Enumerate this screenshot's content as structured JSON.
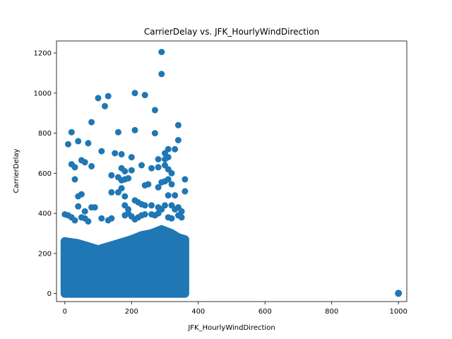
{
  "chart_data": {
    "type": "scatter",
    "title": "CarrierDelay vs. JFK_HourlyWindDirection",
    "xlabel": "JFK_HourlyWindDirection",
    "ylabel": "CarrierDelay",
    "xlim": [
      -25,
      1025
    ],
    "ylim": [
      -40,
      1260
    ],
    "xticks": [
      0,
      200,
      400,
      600,
      800,
      1000
    ],
    "yticks": [
      0,
      200,
      400,
      600,
      800,
      1000,
      1200
    ],
    "grid": false,
    "legend": "none",
    "marker_color": "#1f77b4",
    "series": [
      {
        "points": [
          [
            290,
            1205
          ],
          [
            290,
            1095
          ],
          [
            130,
            985
          ],
          [
            210,
            1000
          ],
          [
            240,
            990
          ],
          [
            100,
            975
          ],
          [
            120,
            935
          ],
          [
            270,
            915
          ],
          [
            80,
            855
          ],
          [
            340,
            840
          ],
          [
            20,
            805
          ],
          [
            160,
            805
          ],
          [
            210,
            815
          ],
          [
            270,
            800
          ],
          [
            10,
            745
          ],
          [
            40,
            760
          ],
          [
            70,
            750
          ],
          [
            340,
            765
          ],
          [
            110,
            710
          ],
          [
            150,
            700
          ],
          [
            170,
            695
          ],
          [
            200,
            680
          ],
          [
            300,
            700
          ],
          [
            310,
            720
          ],
          [
            330,
            720
          ],
          [
            280,
            670
          ],
          [
            300,
            670
          ],
          [
            310,
            680
          ],
          [
            20,
            645
          ],
          [
            30,
            630
          ],
          [
            50,
            665
          ],
          [
            60,
            655
          ],
          [
            80,
            635
          ],
          [
            200,
            615
          ],
          [
            170,
            625
          ],
          [
            180,
            610
          ],
          [
            230,
            640
          ],
          [
            260,
            625
          ],
          [
            280,
            630
          ],
          [
            300,
            640
          ],
          [
            310,
            620
          ],
          [
            320,
            600
          ],
          [
            30,
            570
          ],
          [
            140,
            590
          ],
          [
            160,
            580
          ],
          [
            170,
            565
          ],
          [
            180,
            570
          ],
          [
            190,
            575
          ],
          [
            250,
            545
          ],
          [
            290,
            555
          ],
          [
            300,
            560
          ],
          [
            310,
            570
          ],
          [
            320,
            545
          ],
          [
            360,
            570
          ],
          [
            40,
            485
          ],
          [
            50,
            495
          ],
          [
            140,
            505
          ],
          [
            160,
            505
          ],
          [
            170,
            525
          ],
          [
            180,
            485
          ],
          [
            240,
            540
          ],
          [
            280,
            530
          ],
          [
            310,
            490
          ],
          [
            330,
            490
          ],
          [
            360,
            510
          ],
          [
            40,
            435
          ],
          [
            60,
            410
          ],
          [
            80,
            430
          ],
          [
            90,
            430
          ],
          [
            180,
            440
          ],
          [
            190,
            420
          ],
          [
            210,
            465
          ],
          [
            220,
            455
          ],
          [
            230,
            445
          ],
          [
            240,
            440
          ],
          [
            260,
            440
          ],
          [
            280,
            430
          ],
          [
            290,
            420
          ],
          [
            300,
            440
          ],
          [
            320,
            440
          ],
          [
            330,
            420
          ],
          [
            340,
            430
          ],
          [
            350,
            410
          ],
          [
            0,
            395
          ],
          [
            10,
            390
          ],
          [
            20,
            380
          ],
          [
            30,
            365
          ],
          [
            50,
            380
          ],
          [
            60,
            375
          ],
          [
            70,
            360
          ],
          [
            110,
            375
          ],
          [
            130,
            365
          ],
          [
            140,
            375
          ],
          [
            180,
            390
          ],
          [
            190,
            400
          ],
          [
            200,
            385
          ],
          [
            210,
            370
          ],
          [
            220,
            380
          ],
          [
            230,
            390
          ],
          [
            240,
            395
          ],
          [
            260,
            395
          ],
          [
            270,
            390
          ],
          [
            280,
            400
          ],
          [
            310,
            380
          ],
          [
            320,
            375
          ],
          [
            340,
            390
          ],
          [
            350,
            380
          ],
          [
            1000,
            0
          ],
          [
            1000,
            3
          ],
          [
            999,
            1
          ],
          [
            1001,
            2
          ],
          [
            1000,
            -1
          ]
        ]
      }
    ]
  }
}
